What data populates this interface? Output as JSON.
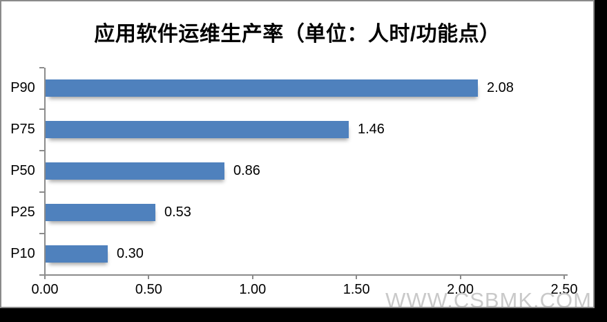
{
  "window": {
    "background_color": "#000000",
    "panel_border_color": "#8a8a8a",
    "panel_background_color": "#ffffff"
  },
  "watermark": {
    "text": "WWW.CSBMK.COM",
    "color": "#c9c9c9"
  },
  "chart_data": {
    "type": "bar",
    "orientation": "horizontal",
    "title": "应用软件运维生产率（单位：人时/功能点）",
    "categories": [
      "P90",
      "P75",
      "P50",
      "P25",
      "P10"
    ],
    "values": [
      2.08,
      1.46,
      0.86,
      0.53,
      0.3
    ],
    "data_labels": [
      "2.08",
      "1.46",
      "0.86",
      "0.53",
      "0.30"
    ],
    "xlabel": "",
    "ylabel": "",
    "xlim": [
      0,
      2.5
    ],
    "x_ticks": [
      "0.00",
      "0.50",
      "1.00",
      "1.50",
      "2.00",
      "2.50"
    ],
    "bar_color": "#4f81bd",
    "axis_color": "#8b8b8b",
    "grid": false,
    "legend": false
  }
}
